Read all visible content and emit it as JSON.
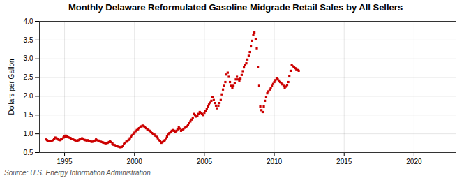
{
  "chart_data": {
    "type": "scatter",
    "title": "Monthly Delaware Reformulated Gasoline Midgrade Retail Sales by All Sellers",
    "ylabel": "Dollars per Gallon",
    "annotations": [
      "Source: U.S. Energy Information Administration"
    ],
    "color": "#cc0000",
    "marker": "square",
    "grid": true,
    "xlim": [
      1993.2,
      2023.0
    ],
    "ylim": [
      0.5,
      4.0
    ],
    "xticks": [
      1995,
      2000,
      2005,
      2010,
      2015,
      2020
    ],
    "yticks": [
      0.5,
      {
        "value": 1.0,
        "label": "1.0"
      },
      1.5,
      {
        "value": 2.0,
        "label": "2.0"
      },
      2.5,
      {
        "value": 3.0,
        "label": "3.0"
      },
      3.5,
      {
        "value": 4.0,
        "label": "4.0"
      }
    ],
    "x": [
      1993.67,
      1993.75,
      1993.83,
      1993.92,
      1994.0,
      1994.08,
      1994.17,
      1994.25,
      1994.33,
      1994.42,
      1994.5,
      1994.58,
      1994.67,
      1994.75,
      1994.83,
      1994.92,
      1995.0,
      1995.08,
      1995.17,
      1995.25,
      1995.33,
      1995.42,
      1995.5,
      1995.58,
      1995.67,
      1995.75,
      1995.83,
      1995.92,
      1996.0,
      1996.08,
      1996.17,
      1996.25,
      1996.33,
      1996.42,
      1996.5,
      1996.58,
      1996.67,
      1996.75,
      1996.83,
      1996.92,
      1997.0,
      1997.08,
      1997.17,
      1997.25,
      1997.33,
      1997.42,
      1997.5,
      1997.58,
      1997.67,
      1997.75,
      1997.83,
      1997.92,
      1998.0,
      1998.08,
      1998.17,
      1998.25,
      1998.33,
      1998.42,
      1998.5,
      1998.58,
      1998.67,
      1998.75,
      1998.83,
      1998.92,
      1999.0,
      1999.08,
      1999.17,
      1999.25,
      1999.33,
      1999.42,
      1999.5,
      1999.58,
      1999.67,
      1999.75,
      1999.83,
      1999.92,
      2000.0,
      2000.08,
      2000.17,
      2000.25,
      2000.33,
      2000.42,
      2000.5,
      2000.58,
      2000.67,
      2000.75,
      2000.83,
      2000.92,
      2001.0,
      2001.08,
      2001.17,
      2001.25,
      2001.33,
      2001.42,
      2001.5,
      2001.58,
      2001.67,
      2001.75,
      2001.83,
      2001.92,
      2002.0,
      2002.08,
      2002.17,
      2002.25,
      2002.33,
      2002.42,
      2002.5,
      2002.58,
      2002.67,
      2002.75,
      2002.83,
      2002.92,
      2003.0,
      2003.08,
      2003.17,
      2003.25,
      2003.33,
      2003.42,
      2003.5,
      2003.58,
      2003.67,
      2003.75,
      2003.83,
      2003.92,
      2004.0,
      2004.08,
      2004.17,
      2004.25,
      2004.33,
      2004.42,
      2004.5,
      2004.58,
      2004.67,
      2004.75,
      2004.83,
      2004.92,
      2005.0,
      2005.08,
      2005.17,
      2005.25,
      2005.33,
      2005.42,
      2005.5,
      2005.58,
      2005.67,
      2005.75,
      2005.83,
      2005.92,
      2006.0,
      2006.08,
      2006.17,
      2006.25,
      2006.33,
      2006.42,
      2006.5,
      2006.58,
      2006.67,
      2006.75,
      2006.83,
      2006.92,
      2007.0,
      2007.08,
      2007.17,
      2007.25,
      2007.33,
      2007.42,
      2007.5,
      2007.58,
      2007.67,
      2007.75,
      2007.83,
      2007.92,
      2008.0,
      2008.08,
      2008.17,
      2008.25,
      2008.33,
      2008.42,
      2008.5,
      2008.58,
      2008.67,
      2008.75,
      2008.83,
      2008.92,
      2009.0,
      2009.08,
      2009.17,
      2009.25,
      2009.33,
      2009.42,
      2009.5,
      2009.58,
      2009.67,
      2009.75,
      2009.83,
      2009.92,
      2010.0,
      2010.08,
      2010.17,
      2010.25,
      2010.33,
      2010.42,
      2010.5,
      2010.58,
      2010.67,
      2010.75,
      2010.83,
      2010.92,
      2011.0,
      2011.08,
      2011.17,
      2011.25,
      2011.33,
      2011.42,
      2011.5,
      2011.58,
      2011.67,
      2011.75
    ],
    "values": [
      0.85,
      0.83,
      0.81,
      0.8,
      0.8,
      0.81,
      0.83,
      0.87,
      0.9,
      0.88,
      0.86,
      0.84,
      0.83,
      0.85,
      0.87,
      0.9,
      0.93,
      0.95,
      0.93,
      0.91,
      0.9,
      0.89,
      0.87,
      0.86,
      0.84,
      0.83,
      0.82,
      0.81,
      0.83,
      0.85,
      0.87,
      0.88,
      0.86,
      0.84,
      0.83,
      0.82,
      0.83,
      0.81,
      0.8,
      0.79,
      0.79,
      0.8,
      0.82,
      0.85,
      0.83,
      0.82,
      0.8,
      0.79,
      0.78,
      0.77,
      0.76,
      0.75,
      0.75,
      0.76,
      0.78,
      0.8,
      0.78,
      0.74,
      0.71,
      0.7,
      0.68,
      0.67,
      0.66,
      0.65,
      0.64,
      0.65,
      0.68,
      0.73,
      0.76,
      0.79,
      0.81,
      0.84,
      0.88,
      0.92,
      0.96,
      1.0,
      1.03,
      1.07,
      1.1,
      1.12,
      1.15,
      1.18,
      1.2,
      1.22,
      1.2,
      1.18,
      1.15,
      1.12,
      1.1,
      1.08,
      1.05,
      1.02,
      1.0,
      0.98,
      0.95,
      0.92,
      0.88,
      0.83,
      0.8,
      0.76,
      0.78,
      0.8,
      0.83,
      0.88,
      0.93,
      0.98,
      1.02,
      1.05,
      1.08,
      1.1,
      1.08,
      1.05,
      1.08,
      1.12,
      1.18,
      1.14,
      1.08,
      1.1,
      1.13,
      1.16,
      1.18,
      1.2,
      1.23,
      1.28,
      1.33,
      1.38,
      1.43,
      1.53,
      1.5,
      1.46,
      1.48,
      1.53,
      1.58,
      1.56,
      1.53,
      1.5,
      1.56,
      1.6,
      1.66,
      1.73,
      1.78,
      1.83,
      1.88,
      1.98,
      1.9,
      1.82,
      1.75,
      1.68,
      1.75,
      1.82,
      1.9,
      2.05,
      2.18,
      2.28,
      2.38,
      2.58,
      2.63,
      2.52,
      2.38,
      2.28,
      2.22,
      2.28,
      2.35,
      2.45,
      2.52,
      2.45,
      2.42,
      2.47,
      2.57,
      2.67,
      2.77,
      2.83,
      2.88,
      2.98,
      3.08,
      3.18,
      3.33,
      3.48,
      3.63,
      3.7,
      3.53,
      3.28,
      2.78,
      2.28,
      1.73,
      1.63,
      1.58,
      1.73,
      1.88,
      1.98,
      2.08,
      2.13,
      2.18,
      2.23,
      2.28,
      2.33,
      2.38,
      2.43,
      2.48,
      2.45,
      2.42,
      2.38,
      2.35,
      2.32,
      2.28,
      2.23,
      2.26,
      2.3,
      2.38,
      2.53,
      2.68,
      2.83,
      2.8,
      2.78,
      2.75,
      2.72,
      2.7,
      2.68
    ]
  }
}
